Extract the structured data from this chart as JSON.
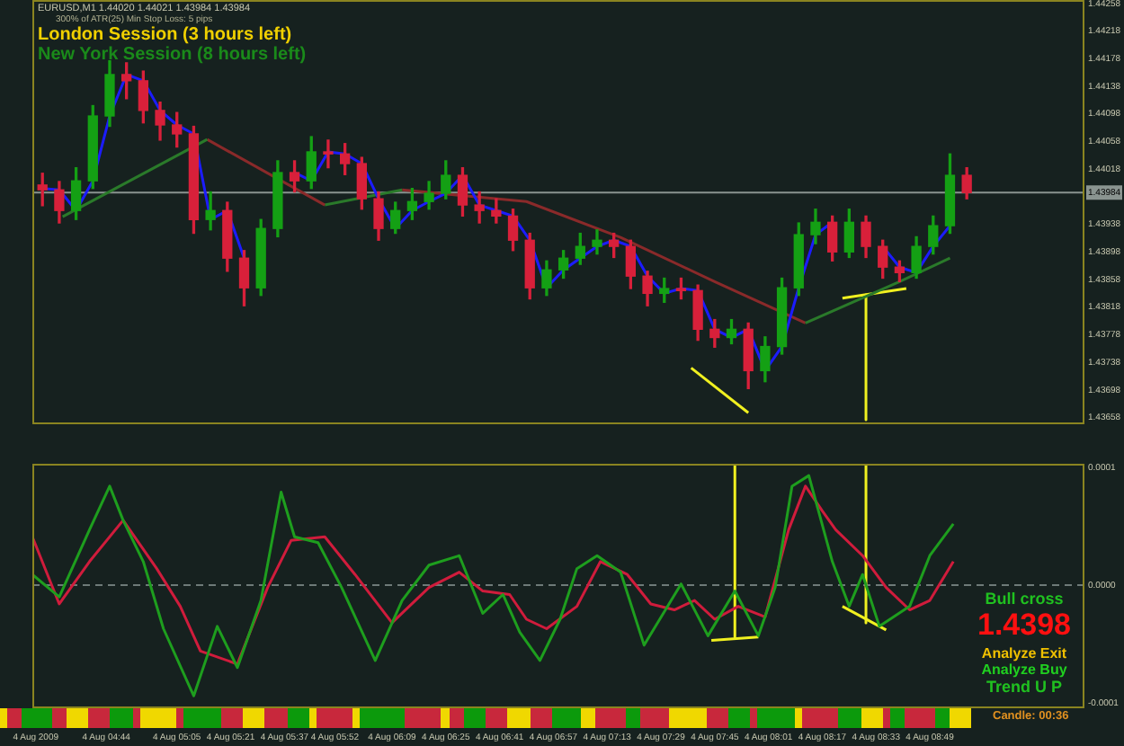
{
  "chart_data": [
    {
      "type": "candlestick",
      "annotations": [
        "EURUSD,M1 1.44020 1.44021 1.43984 1.43984",
        "300% of ATR(25)    Min Stop Loss: 5 pips",
        "London Session (3 hours left)",
        "New York Session (8 hours left)"
      ],
      "x": [
        "2009-08-04T04:25",
        "2009-08-04T04:30",
        "2009-08-04T04:35",
        "2009-08-04T04:40",
        "2009-08-04T04:45",
        "2009-08-04T04:50",
        "2009-08-04T04:55",
        "2009-08-04T05:00",
        "2009-08-04T05:05",
        "2009-08-04T05:10",
        "2009-08-04T05:15",
        "2009-08-04T05:20",
        "2009-08-04T05:25",
        "2009-08-04T05:30",
        "2009-08-04T05:35",
        "2009-08-04T05:40",
        "2009-08-04T05:45",
        "2009-08-04T05:50",
        "2009-08-04T05:55",
        "2009-08-04T06:00",
        "2009-08-04T06:05",
        "2009-08-04T06:10",
        "2009-08-04T06:15",
        "2009-08-04T06:20",
        "2009-08-04T06:25",
        "2009-08-04T06:30",
        "2009-08-04T06:35",
        "2009-08-04T06:40",
        "2009-08-04T06:45",
        "2009-08-04T06:50",
        "2009-08-04T06:55",
        "2009-08-04T07:00",
        "2009-08-04T07:05",
        "2009-08-04T07:10",
        "2009-08-04T07:15",
        "2009-08-04T07:20",
        "2009-08-04T07:25",
        "2009-08-04T07:30",
        "2009-08-04T07:35",
        "2009-08-04T07:40",
        "2009-08-04T07:45",
        "2009-08-04T07:50",
        "2009-08-04T07:55",
        "2009-08-04T08:00",
        "2009-08-04T08:05",
        "2009-08-04T08:10",
        "2009-08-04T08:15",
        "2009-08-04T08:20",
        "2009-08-04T08:25",
        "2009-08-04T08:30",
        "2009-08-04T08:35",
        "2009-08-04T08:40",
        "2009-08-04T08:45",
        "2009-08-04T08:50",
        "2009-08-04T08:55",
        "2009-08-04T09:00"
      ],
      "ohlc": [
        [
          1.43995,
          1.44012,
          1.43965,
          1.43988
        ],
        [
          1.43988,
          1.44,
          1.4394,
          1.43958
        ],
        [
          1.43958,
          1.4402,
          1.43945,
          1.44001
        ],
        [
          1.44001,
          1.4411,
          1.4399,
          1.44095
        ],
        [
          1.44095,
          1.44175,
          1.4408,
          1.44155
        ],
        [
          1.44155,
          1.44172,
          1.4412,
          1.44146
        ],
        [
          1.44146,
          1.4416,
          1.44085,
          1.44103
        ],
        [
          1.44103,
          1.44115,
          1.4406,
          1.44082
        ],
        [
          1.44082,
          1.441,
          1.4405,
          1.44069
        ],
        [
          1.44069,
          1.4408,
          1.43925,
          1.43945
        ],
        [
          1.43945,
          1.43985,
          1.4393,
          1.43958
        ],
        [
          1.43958,
          1.4397,
          1.4387,
          1.43889
        ],
        [
          1.43889,
          1.439,
          1.4382,
          1.43846
        ],
        [
          1.43846,
          1.43945,
          1.43835,
          1.43932
        ],
        [
          1.43932,
          1.4403,
          1.4392,
          1.44013
        ],
        [
          1.44013,
          1.4403,
          1.43985,
          1.44001
        ],
        [
          1.44001,
          1.44065,
          1.4399,
          1.44043
        ],
        [
          1.44043,
          1.4406,
          1.4402,
          1.4404
        ],
        [
          1.4404,
          1.44055,
          1.4401,
          1.44026
        ],
        [
          1.44026,
          1.44035,
          1.4396,
          1.43975
        ],
        [
          1.43975,
          1.43985,
          1.43915,
          1.43932
        ],
        [
          1.43932,
          1.4397,
          1.43925,
          1.43958
        ],
        [
          1.43958,
          1.4399,
          1.43945,
          1.43971
        ],
        [
          1.43971,
          1.44,
          1.4396,
          1.43983
        ],
        [
          1.43983,
          1.4403,
          1.43975,
          1.44009
        ],
        [
          1.44009,
          1.4402,
          1.4395,
          1.43966
        ],
        [
          1.43966,
          1.43985,
          1.4394,
          1.43958
        ],
        [
          1.43958,
          1.43975,
          1.4394,
          1.4395
        ],
        [
          1.4395,
          1.4396,
          1.439,
          1.43915
        ],
        [
          1.43915,
          1.43925,
          1.4383,
          1.43846
        ],
        [
          1.43846,
          1.43885,
          1.43835,
          1.43872
        ],
        [
          1.43872,
          1.439,
          1.4386,
          1.43889
        ],
        [
          1.43889,
          1.43925,
          1.4388,
          1.43906
        ],
        [
          1.43906,
          1.4393,
          1.43895,
          1.43915
        ],
        [
          1.43915,
          1.43925,
          1.4389,
          1.43906
        ],
        [
          1.43906,
          1.43915,
          1.43845,
          1.43863
        ],
        [
          1.43863,
          1.4387,
          1.4382,
          1.43838
        ],
        [
          1.43838,
          1.4386,
          1.43825,
          1.43845
        ],
        [
          1.43845,
          1.4386,
          1.4383,
          1.43842
        ],
        [
          1.43842,
          1.4385,
          1.4377,
          1.43786
        ],
        [
          1.43786,
          1.438,
          1.4376,
          1.43774
        ],
        [
          1.43774,
          1.438,
          1.43765,
          1.43786
        ],
        [
          1.43786,
          1.43795,
          1.437,
          1.43726
        ],
        [
          1.43726,
          1.43775,
          1.4371,
          1.43761
        ],
        [
          1.43761,
          1.4386,
          1.4375,
          1.43846
        ],
        [
          1.43846,
          1.4394,
          1.43835,
          1.43923
        ],
        [
          1.43923,
          1.4396,
          1.4391,
          1.43941
        ],
        [
          1.43941,
          1.4395,
          1.43885,
          1.43898
        ],
        [
          1.43898,
          1.4396,
          1.4389,
          1.43941
        ],
        [
          1.43941,
          1.4395,
          1.4389,
          1.43906
        ],
        [
          1.43906,
          1.43915,
          1.4386,
          1.43876
        ],
        [
          1.43876,
          1.43885,
          1.43855,
          1.43868
        ],
        [
          1.43868,
          1.4392,
          1.4386,
          1.43906
        ],
        [
          1.43906,
          1.4395,
          1.43895,
          1.43936
        ],
        [
          1.43936,
          1.4404,
          1.43925,
          1.44009
        ],
        [
          1.44009,
          1.4402,
          1.43975,
          1.43984
        ]
      ],
      "colors": [
        "#d8203a",
        "#d8203a",
        "#14a014",
        "#14a014",
        "#14a014",
        "#d8203a",
        "#d8203a",
        "#d8203a",
        "#d8203a",
        "#d8203a",
        "#14a014",
        "#d8203a",
        "#d8203a",
        "#14a014",
        "#14a014",
        "#d8203a",
        "#14a014",
        "#d8203a",
        "#d8203a",
        "#d8203a",
        "#d8203a",
        "#14a014",
        "#14a014",
        "#14a014",
        "#14a014",
        "#d8203a",
        "#d8203a",
        "#d8203a",
        "#d8203a",
        "#d8203a",
        "#14a014",
        "#14a014",
        "#14a014",
        "#14a014",
        "#d8203a",
        "#d8203a",
        "#d8203a",
        "#14a014",
        "#d8203a",
        "#d8203a",
        "#d8203a",
        "#14a014",
        "#d8203a",
        "#14a014",
        "#14a014",
        "#14a014",
        "#14a014",
        "#d8203a",
        "#14a014",
        "#d8203a",
        "#d8203a",
        "#d8203a",
        "#14a014",
        "#14a014",
        "#14a014",
        "#d8203a"
      ],
      "series": [
        {
          "type": "line",
          "color": "#1c1cff",
          "values": [
            1.4399,
            1.43988,
            1.43958,
            1.44001,
            1.44095,
            1.44155,
            1.44146,
            1.44103,
            1.44082,
            1.44069,
            1.43945,
            1.43958,
            1.43889,
            null,
            null,
            1.44013,
            1.44001,
            1.44043,
            1.4404,
            1.44026,
            1.43975,
            1.43932,
            1.43958,
            1.43971,
            1.43983,
            1.44009,
            1.43966,
            1.43958,
            1.4395,
            1.43915,
            1.43846,
            1.43872,
            1.43889,
            1.43906,
            1.43915,
            1.43906,
            1.43863,
            1.43838,
            1.43845,
            1.43842,
            1.43786,
            1.43774,
            1.43786,
            1.43726,
            1.43761,
            1.43846,
            1.43923,
            1.43941,
            null,
            null,
            1.43906,
            1.43876,
            1.43868,
            1.43906,
            1.43936,
            null
          ]
        },
        {
          "type": "line",
          "color": "#2a7a2a",
          "x": [
            "2009-08-04T04:31",
            "2009-08-04T05:14"
          ],
          "values": [
            1.43949,
            1.44061
          ]
        },
        {
          "type": "line",
          "color": "#8a2a2a",
          "x": [
            "2009-08-04T05:14",
            "2009-08-04T05:49"
          ],
          "values": [
            1.44061,
            1.43966
          ]
        },
        {
          "type": "line",
          "color": "#2a7a2a",
          "x": [
            "2009-08-04T05:49",
            "2009-08-04T06:12"
          ],
          "values": [
            1.43966,
            1.43988
          ]
        },
        {
          "type": "line",
          "color": "#2a7a2a",
          "x": [
            "2009-08-04T08:12",
            "2009-08-04T08:40",
            "2009-08-04T08:55"
          ],
          "values": [
            1.43795,
            1.43855,
            1.43889
          ]
        },
        {
          "type": "line",
          "color": "#8a2a2a",
          "x": [
            "2009-08-04T06:12",
            "2009-08-04T06:49",
            "2009-08-04T07:17",
            "2009-08-04T07:45",
            "2009-08-04T08:12"
          ],
          "values": [
            1.43988,
            1.43971,
            1.43919,
            1.43855,
            1.43795
          ]
        },
        {
          "type": "line",
          "color": "#f0f020",
          "x": [
            "2009-08-04T07:38",
            "2009-08-04T07:55"
          ],
          "values": [
            1.4373,
            1.43665
          ]
        },
        {
          "type": "line",
          "color": "#f0f020",
          "x": [
            "2009-08-04T08:23",
            "2009-08-04T08:42"
          ],
          "values": [
            1.43831,
            1.43845
          ]
        },
        {
          "type": "line",
          "color": "#f0f020",
          "x": [
            "2009-08-04T08:30",
            "2009-08-04T08:30"
          ],
          "values": [
            1.43836,
            1.43655
          ]
        }
      ],
      "xlim": [
        "2009-08-04T04:22",
        "2009-08-04T09:35"
      ],
      "ylim": [
        1.43651,
        1.44263
      ],
      "yticks": [
        1.44258,
        1.44218,
        1.44178,
        1.44138,
        1.44098,
        1.44058,
        1.44018,
        1.43938,
        1.43898,
        1.43858,
        1.43818,
        1.43778,
        1.43738,
        1.43698,
        1.43658
      ],
      "ref_lines": [
        {
          "axis": "y",
          "value": 1.43984,
          "label": "1.43984",
          "color": "#8a9490"
        }
      ],
      "tick_labels": "y"
    },
    {
      "type": "line",
      "annotations": [
        "Bull cross",
        "1.4398",
        "Analyze Exit",
        "Analyze Buy",
        "Trend U P",
        "Candle: 00:36"
      ],
      "series": [
        {
          "color": "#1e9e1e",
          "x": [
            "2009-08-04T04:22",
            "2009-08-04T04:30",
            "2009-08-04T04:39",
            "2009-08-04T04:45",
            "2009-08-04T04:49",
            "2009-08-04T04:55",
            "2009-08-04T05:01",
            "2009-08-04T05:10",
            "2009-08-04T05:17",
            "2009-08-04T05:23",
            "2009-08-04T05:30",
            "2009-08-04T05:36",
            "2009-08-04T05:40",
            "2009-08-04T05:47",
            "2009-08-04T05:54",
            "2009-08-04T06:04",
            "2009-08-04T06:12",
            "2009-08-04T06:20",
            "2009-08-04T06:29",
            "2009-08-04T06:36",
            "2009-08-04T06:42",
            "2009-08-04T06:47",
            "2009-08-04T06:53",
            "2009-08-04T06:59",
            "2009-08-04T07:04",
            "2009-08-04T07:10",
            "2009-08-04T07:17",
            "2009-08-04T07:24",
            "2009-08-04T07:35",
            "2009-08-04T07:43",
            "2009-08-04T07:51",
            "2009-08-04T07:58",
            "2009-08-04T08:03",
            "2009-08-04T08:08",
            "2009-08-04T08:13",
            "2009-08-04T08:20",
            "2009-08-04T08:25",
            "2009-08-04T08:29",
            "2009-08-04T08:34",
            "2009-08-04T08:43",
            "2009-08-04T08:49",
            "2009-08-04T08:56"
          ],
          "values": [
            9e-06,
            -1e-05,
            4.7e-05,
            8.4e-05,
            5.5e-05,
            2e-05,
            -3.7e-05,
            -9.4e-05,
            -3.5e-05,
            -7e-05,
            -1.3e-05,
            7.9e-05,
            4.1e-05,
            3.6e-05,
            -2e-06,
            -6.4e-05,
            -1.3e-05,
            1.7e-05,
            2.5e-05,
            -2.4e-05,
            -8e-06,
            -4e-05,
            -6.4e-05,
            -2.9e-05,
            1.4e-05,
            2.5e-05,
            1.1e-05,
            -5.1e-05,
            1e-06,
            -4.3e-05,
            -5e-06,
            -4.3e-05,
            -2e-06,
            8.4e-05,
            9.3e-05,
            2e-05,
            -1.8e-05,
            9e-06,
            -3.5e-05,
            -1.8e-05,
            2.5e-05,
            5.2e-05
          ]
        },
        {
          "color": "#d01c3c",
          "x": [
            "2009-08-04T04:22",
            "2009-08-04T04:30",
            "2009-08-04T04:39",
            "2009-08-04T04:49",
            "2009-08-04T04:59",
            "2009-08-04T05:06",
            "2009-08-04T05:12",
            "2009-08-04T05:23",
            "2009-08-04T05:32",
            "2009-08-04T05:39",
            "2009-08-04T05:49",
            "2009-08-04T05:58",
            "2009-08-04T06:09",
            "2009-08-04T06:20",
            "2009-08-04T06:29",
            "2009-08-04T06:36",
            "2009-08-04T06:44",
            "2009-08-04T06:49",
            "2009-08-04T06:55",
            "2009-08-04T07:04",
            "2009-08-04T07:11",
            "2009-08-04T07:19",
            "2009-08-04T07:26",
            "2009-08-04T07:33",
            "2009-08-04T07:39",
            "2009-08-04T07:45",
            "2009-08-04T07:52",
            "2009-08-04T08:00",
            "2009-08-04T08:07",
            "2009-08-04T08:12",
            "2009-08-04T08:17",
            "2009-08-04T08:21",
            "2009-08-04T08:29",
            "2009-08-04T08:36",
            "2009-08-04T08:43",
            "2009-08-04T08:49",
            "2009-08-04T08:56"
          ],
          "values": [
            4.1e-05,
            -1.6e-05,
            2e-05,
            5.5e-05,
            1.4e-05,
            -1.8e-05,
            -5.6e-05,
            -6.7e-05,
            -2e-06,
            3.8e-05,
            4.1e-05,
            9e-06,
            -3.2e-05,
            -2e-06,
            1.1e-05,
            -5e-06,
            -8e-06,
            -2.9e-05,
            -3.7e-05,
            -1.8e-05,
            2e-05,
            9e-06,
            -1.6e-05,
            -2.1e-05,
            -1.3e-05,
            -2.9e-05,
            -1.8e-05,
            -2.7e-05,
            4.7e-05,
            8.4e-05,
            6.3e-05,
            4.7e-05,
            2.5e-05,
            -2e-06,
            -2.1e-05,
            -1.3e-05,
            2e-05
          ]
        },
        {
          "color": "#f0f020",
          "x": [
            "2009-08-04T07:51",
            "2009-08-04T07:51"
          ],
          "values": [
            0.000103,
            -4.4e-05
          ]
        },
        {
          "color": "#f0f020",
          "x": [
            "2009-08-04T07:44",
            "2009-08-04T07:58"
          ],
          "values": [
            -4.7e-05,
            -4.4e-05
          ]
        },
        {
          "color": "#f0f020",
          "x": [
            "2009-08-04T08:30",
            "2009-08-04T08:30"
          ],
          "values": [
            0.000103,
            -3.2e-05
          ]
        },
        {
          "color": "#f0f020",
          "x": [
            "2009-08-04T08:23",
            "2009-08-04T08:36"
          ],
          "values": [
            -1.8e-05,
            -3.8e-05
          ]
        }
      ],
      "xlim": [
        "2009-08-04T04:22",
        "2009-08-04T09:35"
      ],
      "xticks": [
        {
          "value": "2009-08-04T04:23",
          "label": "4 Aug 2009"
        },
        {
          "value": "2009-08-04T04:44",
          "label": "4 Aug 04:44"
        },
        {
          "value": "2009-08-04T05:05",
          "label": "4 Aug 05:05"
        },
        {
          "value": "2009-08-04T05:21",
          "label": "4 Aug 05:21"
        },
        {
          "value": "2009-08-04T05:37",
          "label": "4 Aug 05:37"
        },
        {
          "value": "2009-08-04T05:52",
          "label": "4 Aug 05:52"
        },
        {
          "value": "2009-08-04T06:09",
          "label": "4 Aug 06:09"
        },
        {
          "value": "2009-08-04T06:25",
          "label": "4 Aug 06:25"
        },
        {
          "value": "2009-08-04T06:41",
          "label": "4 Aug 06:41"
        },
        {
          "value": "2009-08-04T06:57",
          "label": "4 Aug 06:57"
        },
        {
          "value": "2009-08-04T07:13",
          "label": "4 Aug 07:13"
        },
        {
          "value": "2009-08-04T07:29",
          "label": "4 Aug 07:29"
        },
        {
          "value": "2009-08-04T07:45",
          "label": "4 Aug 07:45"
        },
        {
          "value": "2009-08-04T08:01",
          "label": "4 Aug 08:01"
        },
        {
          "value": "2009-08-04T08:17",
          "label": "4 Aug 08:17"
        },
        {
          "value": "2009-08-04T08:33",
          "label": "4 Aug 08:33"
        },
        {
          "value": "2009-08-04T08:49",
          "label": "4 Aug 08:49"
        }
      ],
      "ylim": [
        -0.000103,
        0.000103
      ],
      "yticks": [
        {
          "value": 0.0001,
          "label": "0.0001"
        },
        {
          "value": 0,
          "label": "0.0000"
        },
        {
          "value": -0.0001,
          "label": "-0.0001"
        }
      ],
      "ref_lines": [
        {
          "axis": "y",
          "value": 0,
          "color": "#6e7a78",
          "line_style": "dashed"
        }
      ]
    }
  ]
}
